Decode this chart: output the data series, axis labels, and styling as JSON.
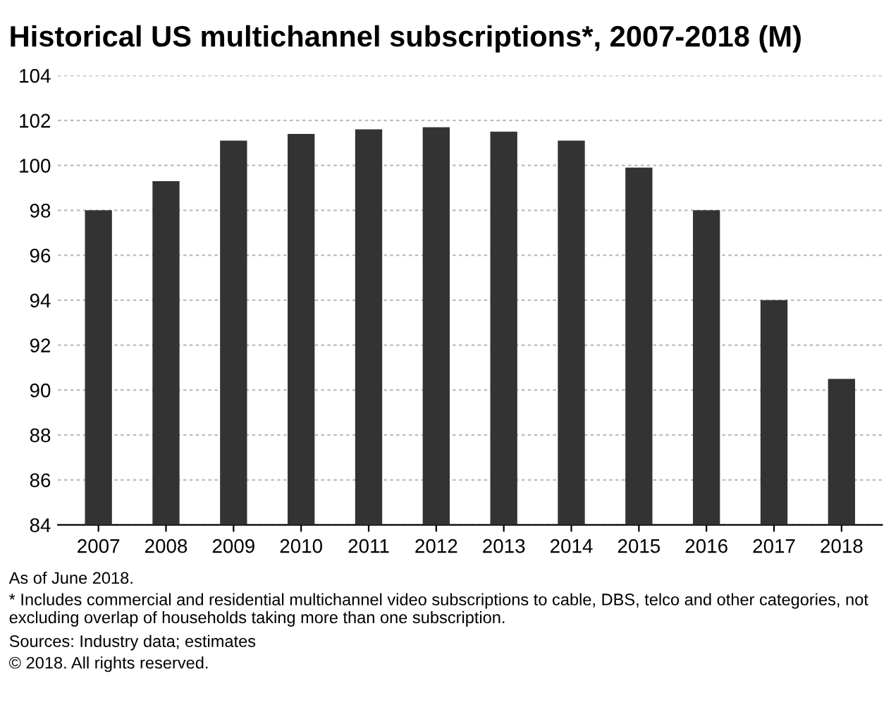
{
  "chart_data": {
    "type": "bar",
    "title": "Historical US multichannel subscriptions*, 2007-2018 (M)",
    "categories": [
      "2007",
      "2008",
      "2009",
      "2010",
      "2011",
      "2012",
      "2013",
      "2014",
      "2015",
      "2016",
      "2017",
      "2018"
    ],
    "values": [
      98.0,
      99.3,
      101.1,
      101.4,
      101.6,
      101.7,
      101.5,
      101.1,
      99.9,
      98.0,
      94.0,
      90.5
    ],
    "color": "#333333",
    "ylim": [
      84,
      104
    ],
    "yticks": [
      84,
      86,
      88,
      90,
      92,
      94,
      96,
      98,
      100,
      102,
      104
    ],
    "grid": "y",
    "annotations": [
      "As of June 2018.",
      "* Includes commercial and residential multichannel video subscriptions to cable, DBS, telco and other categories, not excluding overlap of households taking more than one subscription.",
      "Sources: Industry data; estimates",
      "© 2018. All rights reserved."
    ]
  }
}
